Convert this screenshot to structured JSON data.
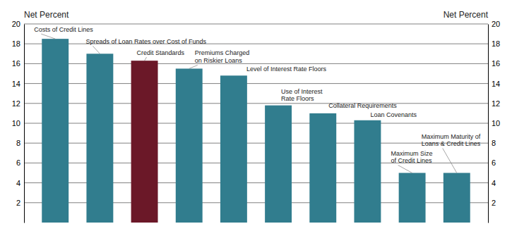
{
  "chart_data": {
    "type": "bar",
    "categories": [
      "Costs of Credit Lines",
      "Spreads of Loan Rates over Cost of Funds",
      "Credit Standards",
      "Premiums Charged\non Riskier Loans",
      "Level of Interest Rate Floors",
      "Use of Interest\nRate Floors",
      "Collateral Requirements",
      "Loan Covenants",
      "Maximum Size\nof Credit Lines",
      "Maximum Maturity of\nLoans & Credit Lines"
    ],
    "values": [
      18.5,
      17.0,
      16.3,
      15.5,
      14.8,
      11.8,
      11.0,
      10.3,
      5.0,
      5.0
    ],
    "colors": [
      "#317d8e",
      "#317d8e",
      "#6b1828",
      "#317d8e",
      "#317d8e",
      "#317d8e",
      "#317d8e",
      "#317d8e",
      "#317d8e",
      "#317d8e"
    ],
    "ylim": [
      0,
      20
    ],
    "yticks": [
      2,
      4,
      6,
      8,
      10,
      12,
      14,
      16,
      18,
      20
    ],
    "y2lim": [
      0,
      20
    ],
    "y2ticks": [
      2,
      4,
      6,
      8,
      10,
      12,
      14,
      16,
      18,
      20
    ],
    "ylabel": "Net Percent",
    "y2label": "Net Percent",
    "grid": true,
    "tick_labels": "y"
  }
}
